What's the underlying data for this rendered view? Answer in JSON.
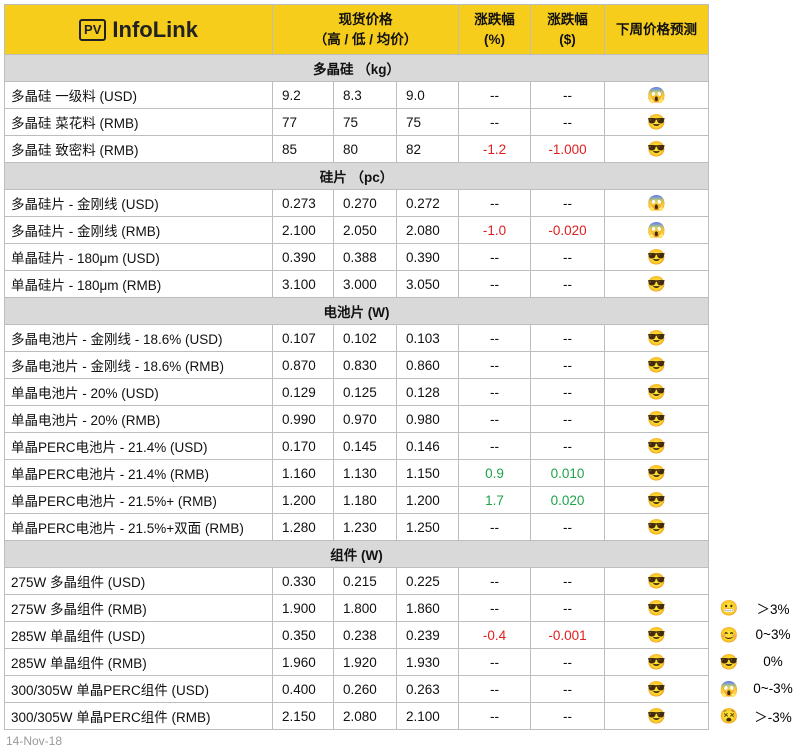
{
  "header": {
    "logo_mark": "PV",
    "logo_text": "InfoLink",
    "price": "现货价格",
    "price_sub": "（高 / 低 / 均价）",
    "pct": "涨跌幅",
    "pct_unit": "(%)",
    "usd": "涨跌幅",
    "usd_unit": "($)",
    "forecast": "下周价格预测"
  },
  "sections": [
    {
      "title": "多晶硅 （kg）",
      "rows": [
        [
          "多晶硅 一级料 (USD)",
          "9.2",
          "8.3",
          "9.0",
          "--",
          "--",
          "😱"
        ],
        [
          "多晶硅 菜花料 (RMB)",
          "77",
          "75",
          "75",
          "--",
          "--",
          "😎"
        ],
        [
          "多晶硅 致密料 (RMB)",
          "85",
          "80",
          "82",
          "-1.2",
          "-1.000",
          "😎"
        ]
      ]
    },
    {
      "title": "硅片 （pc）",
      "rows": [
        [
          "多晶硅片 - 金刚线 (USD)",
          "0.273",
          "0.270",
          "0.272",
          "--",
          "--",
          "😱"
        ],
        [
          "多晶硅片 - 金刚线 (RMB)",
          "2.100",
          "2.050",
          "2.080",
          "-1.0",
          "-0.020",
          "😱"
        ],
        [
          "单晶硅片 - 180μm (USD)",
          "0.390",
          "0.388",
          "0.390",
          "--",
          "--",
          "😎"
        ],
        [
          "单晶硅片 - 180μm (RMB)",
          "3.100",
          "3.000",
          "3.050",
          "--",
          "--",
          "😎"
        ]
      ]
    },
    {
      "title": "电池片 (W)",
      "rows": [
        [
          "多晶电池片 - 金刚线 - 18.6% (USD)",
          "0.107",
          "0.102",
          "0.103",
          "--",
          "--",
          "😎"
        ],
        [
          "多晶电池片 - 金刚线 - 18.6% (RMB)",
          "0.870",
          "0.830",
          "0.860",
          "--",
          "--",
          "😎"
        ],
        [
          "单晶电池片 - 20% (USD)",
          "0.129",
          "0.125",
          "0.128",
          "--",
          "--",
          "😎"
        ],
        [
          "单晶电池片 - 20% (RMB)",
          "0.990",
          "0.970",
          "0.980",
          "--",
          "--",
          "😎"
        ],
        [
          "单晶PERC电池片 - 21.4% (USD)",
          "0.170",
          "0.145",
          "0.146",
          "--",
          "--",
          "😎"
        ],
        [
          "单晶PERC电池片 - 21.4% (RMB)",
          "1.160",
          "1.130",
          "1.150",
          "0.9",
          "0.010",
          "😎"
        ],
        [
          "单晶PERC电池片 - 21.5%+ (RMB)",
          "1.200",
          "1.180",
          "1.200",
          "1.7",
          "0.020",
          "😎"
        ],
        [
          "单晶PERC电池片 - 21.5%+双面 (RMB)",
          "1.280",
          "1.230",
          "1.250",
          "--",
          "--",
          "😎"
        ]
      ]
    },
    {
      "title": "组件 (W)",
      "rows": [
        [
          "275W 多晶组件 (USD)",
          "0.330",
          "0.215",
          "0.225",
          "--",
          "--",
          "😎"
        ],
        [
          "275W 多晶组件 (RMB)",
          "1.900",
          "1.800",
          "1.860",
          "--",
          "--",
          "😎"
        ],
        [
          "285W 单晶组件 (USD)",
          "0.350",
          "0.238",
          "0.239",
          "-0.4",
          "-0.001",
          "😎"
        ],
        [
          "285W 单晶组件 (RMB)",
          "1.960",
          "1.920",
          "1.930",
          "--",
          "--",
          "😎"
        ],
        [
          "300/305W 单晶PERC组件 (USD)",
          "0.400",
          "0.260",
          "0.263",
          "--",
          "--",
          "😎"
        ],
        [
          "300/305W 单晶PERC组件 (RMB)",
          "2.150",
          "2.080",
          "2.100",
          "--",
          "--",
          "😎"
        ]
      ]
    }
  ],
  "legend": [
    {
      "icon": "😬",
      "label": "＞3%"
    },
    {
      "icon": "😊",
      "label": "0~3%"
    },
    {
      "icon": "😎",
      "label": "0%"
    },
    {
      "icon": "😱",
      "label": "0~-3%"
    },
    {
      "icon": "😵",
      "label": "＞-3%"
    }
  ],
  "date": "14-Nov-18"
}
